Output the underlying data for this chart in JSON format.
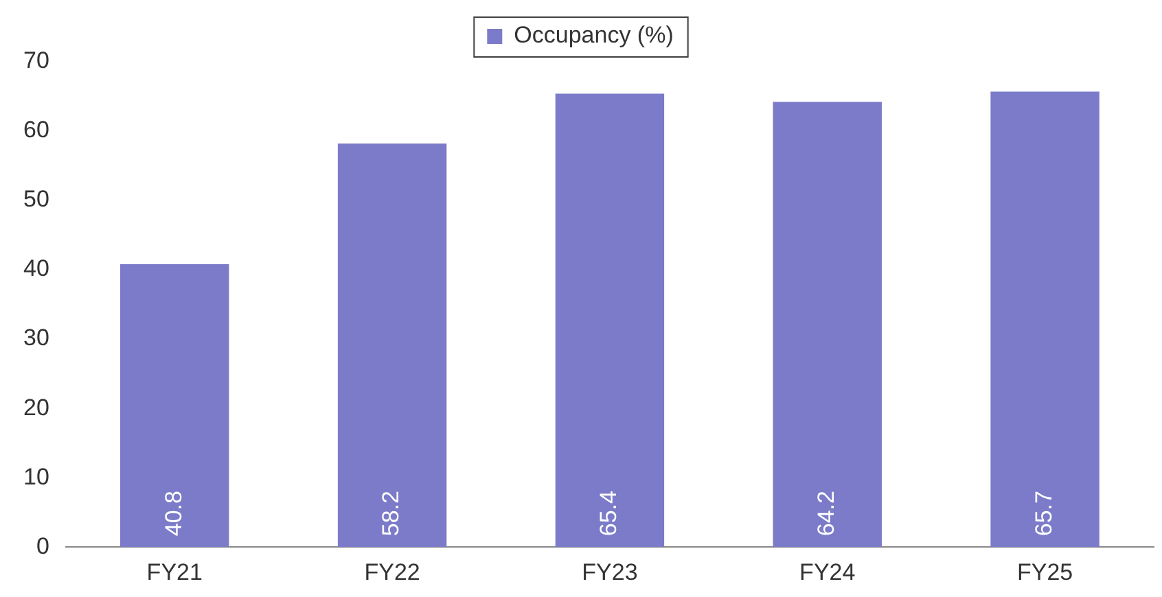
{
  "chart_data": {
    "type": "bar",
    "categories": [
      "FY21",
      "FY22",
      "FY23",
      "FY24",
      "FY25"
    ],
    "series": [
      {
        "name": "Occupancy (%)",
        "color": "#7b7bc9",
        "values": [
          40.8,
          58.2,
          65.4,
          64.2,
          65.7
        ]
      }
    ],
    "ylim": [
      0,
      70
    ],
    "yticks": [
      0,
      10,
      20,
      30,
      40,
      50,
      60,
      70
    ],
    "grid": false,
    "legend": "top",
    "data_labels": true
  }
}
